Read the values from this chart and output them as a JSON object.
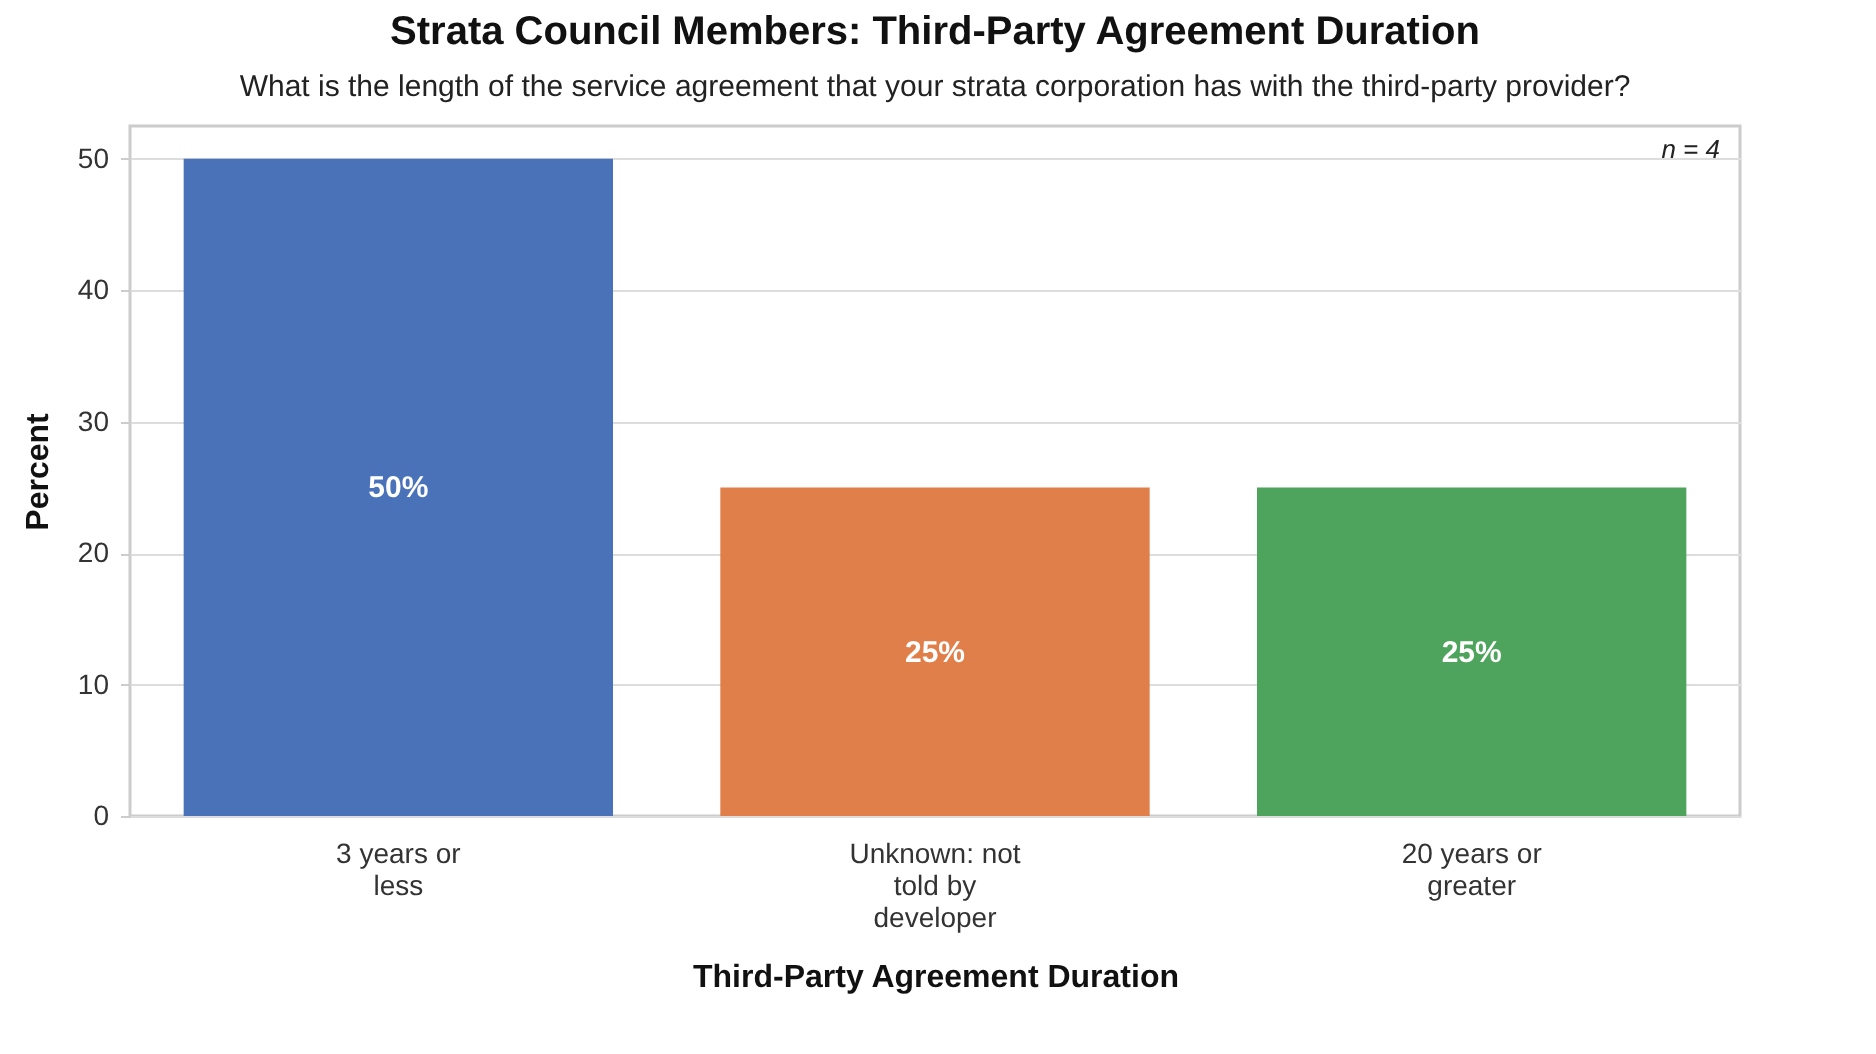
{
  "chart_data": {
    "type": "bar",
    "title": "Strata Council Members: Third-Party Agreement Duration",
    "subtitle": "What is the length of the service agreement that your strata corporation has with the third-party provider?",
    "xlabel": "Third-Party Agreement Duration",
    "ylabel": "Percent",
    "categories": [
      "3 years or less",
      "Unknown: not told by developer",
      "20 years or greater"
    ],
    "values": [
      50,
      25,
      25
    ],
    "colors": [
      "#4a72b8",
      "#e07f4a",
      "#4ea45c"
    ],
    "value_labels": [
      "50%",
      "25%",
      "25%"
    ],
    "annotations": [
      "n = 4"
    ],
    "ylim": [
      0,
      52.5
    ],
    "yticks": [
      0,
      10,
      20,
      30,
      40,
      50
    ],
    "grid": "y"
  }
}
